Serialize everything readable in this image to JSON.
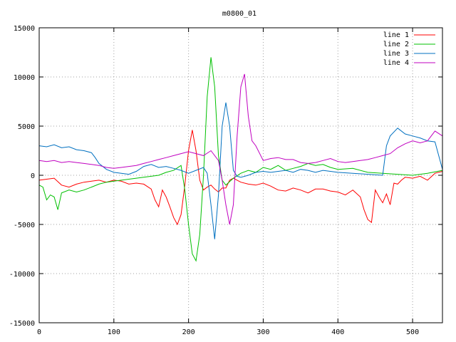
{
  "chart_data": {
    "type": "line",
    "title": "m0800_01",
    "xlabel": "",
    "ylabel": "",
    "xlim": [
      0,
      540
    ],
    "ylim": [
      -15000,
      15000
    ],
    "xticks": [
      0,
      100,
      200,
      300,
      400,
      500
    ],
    "yticks": [
      -15000,
      -10000,
      -5000,
      0,
      5000,
      10000,
      15000
    ],
    "grid": true,
    "legend_position": "top-right",
    "series": [
      {
        "name": "line 1",
        "color": "#ff0000",
        "x": [
          0,
          10,
          20,
          30,
          40,
          50,
          60,
          70,
          80,
          90,
          100,
          110,
          120,
          130,
          140,
          150,
          155,
          160,
          165,
          170,
          175,
          180,
          185,
          190,
          195,
          200,
          205,
          210,
          215,
          220,
          225,
          230,
          235,
          240,
          245,
          250,
          255,
          260,
          265,
          270,
          280,
          290,
          300,
          310,
          320,
          330,
          340,
          350,
          360,
          370,
          380,
          390,
          400,
          410,
          420,
          430,
          435,
          440,
          445,
          450,
          455,
          460,
          465,
          470,
          475,
          480,
          485,
          490,
          500,
          510,
          520,
          530,
          540
        ],
        "y": [
          -500,
          -400,
          -300,
          -1000,
          -1200,
          -900,
          -700,
          -600,
          -500,
          -700,
          -500,
          -600,
          -900,
          -800,
          -900,
          -1400,
          -2500,
          -3200,
          -1500,
          -2200,
          -3200,
          -4300,
          -5000,
          -4000,
          -1000,
          2500,
          4600,
          2500,
          -500,
          -1500,
          -1200,
          -1000,
          -1400,
          -1700,
          -1300,
          -1300,
          -500,
          -300,
          -500,
          -700,
          -900,
          -1000,
          -800,
          -1100,
          -1500,
          -1600,
          -1300,
          -1500,
          -1800,
          -1400,
          -1400,
          -1600,
          -1700,
          -2000,
          -1500,
          -2200,
          -3500,
          -4500,
          -4800,
          -1500,
          -2200,
          -2800,
          -1900,
          -3000,
          -800,
          -900,
          -500,
          -200,
          -300,
          -100,
          -500,
          200,
          400
        ]
      },
      {
        "name": "line 2",
        "color": "#00c000",
        "x": [
          0,
          5,
          10,
          15,
          20,
          25,
          30,
          40,
          50,
          60,
          70,
          80,
          90,
          100,
          110,
          120,
          130,
          140,
          150,
          160,
          170,
          180,
          190,
          195,
          200,
          205,
          210,
          215,
          220,
          225,
          230,
          235,
          240,
          245,
          250,
          260,
          270,
          280,
          290,
          300,
          310,
          320,
          330,
          340,
          350,
          360,
          370,
          380,
          390,
          400,
          420,
          440,
          460,
          480,
          500,
          520,
          540
        ],
        "y": [
          -1000,
          -1200,
          -2500,
          -2000,
          -2200,
          -3500,
          -1800,
          -1500,
          -1700,
          -1500,
          -1200,
          -900,
          -700,
          -600,
          -500,
          -400,
          -300,
          -200,
          -100,
          0,
          300,
          500,
          1000,
          -1500,
          -5000,
          -8000,
          -8700,
          -6000,
          0,
          8000,
          12000,
          9000,
          2000,
          -500,
          -1000,
          -300,
          200,
          500,
          300,
          800,
          600,
          1000,
          500,
          700,
          900,
          1200,
          1000,
          1100,
          800,
          600,
          700,
          300,
          200,
          100,
          0,
          200,
          500
        ]
      },
      {
        "name": "line 3",
        "color": "#0070c0",
        "x": [
          0,
          10,
          20,
          30,
          40,
          50,
          60,
          70,
          75,
          80,
          90,
          100,
          110,
          120,
          130,
          140,
          150,
          160,
          170,
          180,
          190,
          200,
          210,
          220,
          225,
          230,
          235,
          240,
          245,
          250,
          255,
          260,
          265,
          270,
          280,
          290,
          300,
          310,
          320,
          330,
          340,
          350,
          360,
          370,
          380,
          390,
          400,
          420,
          440,
          460,
          465,
          470,
          480,
          490,
          500,
          510,
          520,
          530,
          540
        ],
        "y": [
          3000,
          2900,
          3100,
          2800,
          2900,
          2600,
          2500,
          2300,
          1800,
          1200,
          600,
          300,
          200,
          100,
          400,
          900,
          1100,
          800,
          900,
          700,
          500,
          200,
          500,
          800,
          200,
          -3000,
          -6500,
          -2000,
          5000,
          7400,
          5000,
          500,
          -100,
          -200,
          0,
          300,
          400,
          300,
          400,
          500,
          300,
          600,
          500,
          300,
          500,
          400,
          300,
          200,
          100,
          0,
          3000,
          4000,
          4800,
          4200,
          4000,
          3800,
          3500,
          3400,
          600
        ]
      },
      {
        "name": "line 4",
        "color": "#c000c0",
        "x": [
          0,
          10,
          20,
          30,
          40,
          50,
          60,
          70,
          80,
          90,
          100,
          110,
          120,
          130,
          140,
          150,
          160,
          170,
          180,
          190,
          200,
          210,
          220,
          230,
          240,
          245,
          250,
          255,
          260,
          265,
          270,
          275,
          280,
          285,
          290,
          300,
          310,
          320,
          330,
          340,
          350,
          360,
          370,
          380,
          390,
          400,
          410,
          420,
          430,
          440,
          450,
          460,
          470,
          480,
          490,
          500,
          510,
          520,
          530,
          540
        ],
        "y": [
          1500,
          1400,
          1500,
          1300,
          1400,
          1300,
          1200,
          1100,
          1000,
          800,
          700,
          800,
          900,
          1000,
          1200,
          1400,
          1600,
          1800,
          2000,
          2200,
          2400,
          2200,
          2000,
          2500,
          1500,
          -500,
          -3000,
          -5000,
          -3000,
          4000,
          9000,
          10300,
          6000,
          3500,
          3000,
          1500,
          1700,
          1800,
          1600,
          1600,
          1300,
          1200,
          1300,
          1500,
          1700,
          1400,
          1300,
          1400,
          1500,
          1600,
          1800,
          2000,
          2200,
          2800,
          3200,
          3500,
          3300,
          3500,
          4500,
          4000
        ]
      }
    ]
  }
}
